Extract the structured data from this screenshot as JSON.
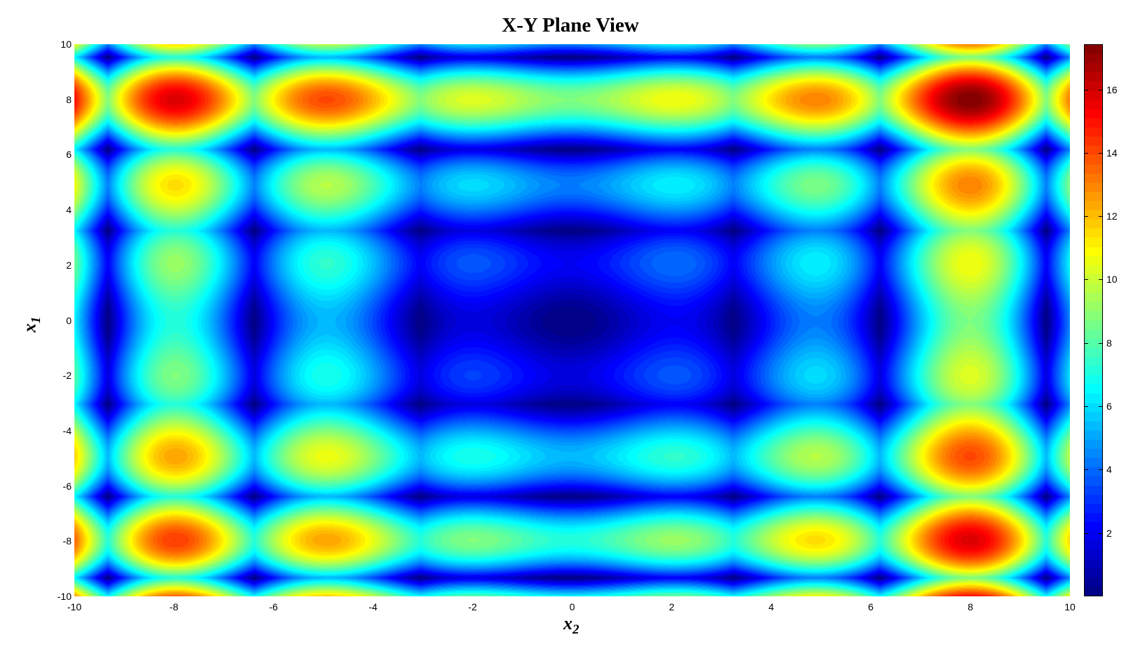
{
  "chart_data": {
    "type": "heatmap",
    "style": "filled contour",
    "title": "X-Y Plane View",
    "xlabel": {
      "base": "x",
      "sub": "2"
    },
    "ylabel": {
      "base": "x",
      "sub": "1"
    },
    "xlim": [
      -10,
      10
    ],
    "ylim": [
      -10,
      10
    ],
    "xticks": [
      "-10",
      "-8",
      "-6",
      "-4",
      "-2",
      "0",
      "2",
      "4",
      "6",
      "8",
      "10"
    ],
    "yticks": [
      "10",
      "8",
      "6",
      "4",
      "2",
      "0",
      "-2",
      "-4",
      "-6",
      "-8",
      "-10"
    ],
    "colormap": "jet",
    "zlim": [
      0,
      17.43
    ],
    "colorbar": {
      "ticks": [
        "2",
        "4",
        "6",
        "8",
        "10",
        "12",
        "14",
        "16"
      ],
      "placement": "right"
    },
    "surface": "z = |x1·sin(x1) + 0.1·x1| + |x2·sin(x2) + 0.1·x2|",
    "features": {
      "max": {
        "x1": 8,
        "x2": 8,
        "z": 17.4
      },
      "min": {
        "x1": 0,
        "x2": 0,
        "z": 0
      }
    }
  }
}
